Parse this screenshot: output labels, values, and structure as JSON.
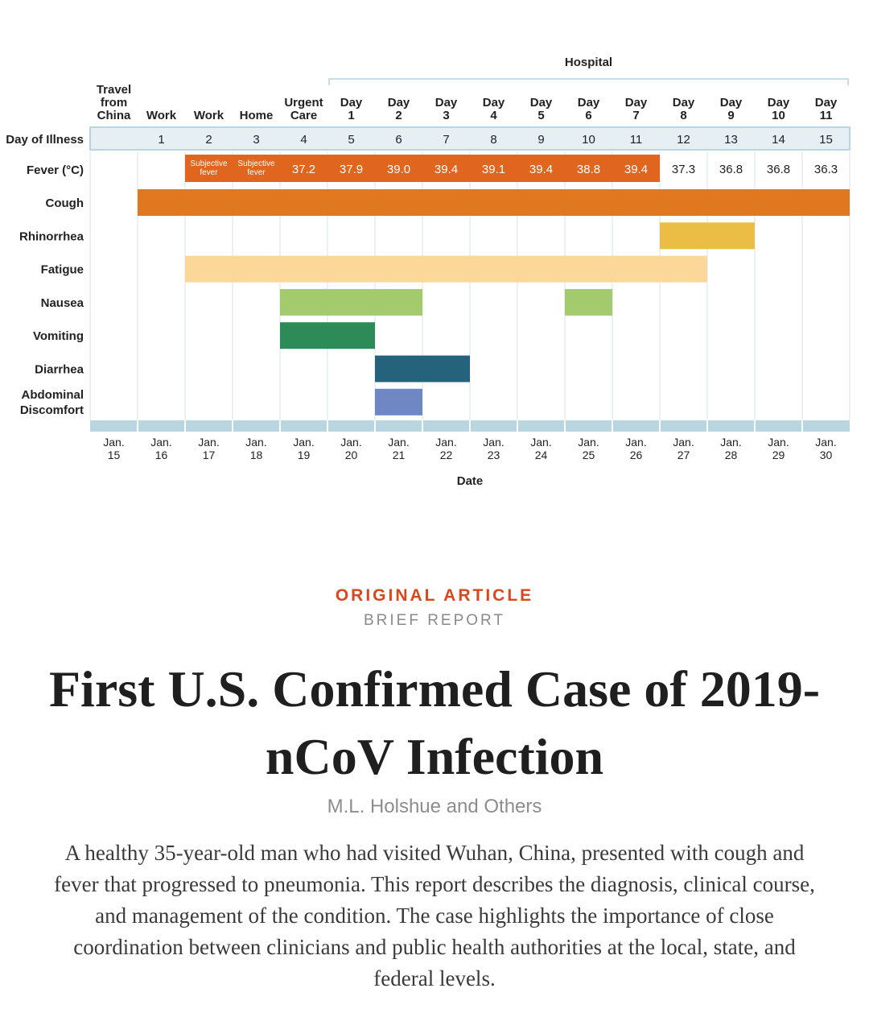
{
  "chart_data": {
    "type": "timeline",
    "hospital_label": "Hospital",
    "location_labels": [
      [
        "Travel",
        "from",
        "China"
      ],
      [
        "Work"
      ],
      [
        "Work"
      ],
      [
        "Home"
      ],
      [
        "Urgent",
        "Care"
      ],
      [
        "Day",
        "1"
      ],
      [
        "Day",
        "2"
      ],
      [
        "Day",
        "3"
      ],
      [
        "Day",
        "4"
      ],
      [
        "Day",
        "5"
      ],
      [
        "Day",
        "6"
      ],
      [
        "Day",
        "7"
      ],
      [
        "Day",
        "8"
      ],
      [
        "Day",
        "9"
      ],
      [
        "Day",
        "10"
      ],
      [
        "Day",
        "11"
      ]
    ],
    "day_of_illness_label": "Day of Illness",
    "day_of_illness": [
      "",
      "1",
      "2",
      "3",
      "4",
      "5",
      "6",
      "7",
      "8",
      "9",
      "10",
      "11",
      "12",
      "13",
      "14",
      "15"
    ],
    "fever_label": "Fever (°C)",
    "fever_values": [
      null,
      null,
      [
        "Subjective",
        "fever"
      ],
      [
        "Subjective",
        "fever"
      ],
      "37.2",
      "37.9",
      "39.0",
      "39.4",
      "39.1",
      "39.4",
      "38.8",
      "39.4",
      "37.3",
      "36.8",
      "36.8",
      "36.3"
    ],
    "fever_bar": {
      "start": 2,
      "end": 11,
      "color": "#e0661f"
    },
    "symptoms": [
      {
        "name": [
          "Cough"
        ],
        "color": "#e0781f",
        "ranges": [
          [
            1,
            15
          ]
        ]
      },
      {
        "name": [
          "Rhinorrhea"
        ],
        "color": "#ebbd44",
        "ranges": [
          [
            12,
            13
          ]
        ]
      },
      {
        "name": [
          "Fatigue"
        ],
        "color": "#fbd89a",
        "ranges": [
          [
            2,
            12
          ]
        ]
      },
      {
        "name": [
          "Nausea"
        ],
        "color": "#a3cb6e",
        "ranges": [
          [
            4,
            6
          ],
          [
            10,
            10
          ]
        ]
      },
      {
        "name": [
          "Vomiting"
        ],
        "color": "#2d8b57",
        "ranges": [
          [
            4,
            5
          ]
        ]
      },
      {
        "name": [
          "Diarrhea"
        ],
        "color": "#24637b",
        "ranges": [
          [
            6,
            7
          ]
        ]
      },
      {
        "name": [
          "Abdominal",
          "Discomfort"
        ],
        "color": "#6f87c2",
        "ranges": [
          [
            6,
            6
          ]
        ]
      }
    ],
    "dates": [
      [
        "Jan.",
        "15"
      ],
      [
        "Jan.",
        "16"
      ],
      [
        "Jan.",
        "17"
      ],
      [
        "Jan.",
        "18"
      ],
      [
        "Jan.",
        "19"
      ],
      [
        "Jan.",
        "20"
      ],
      [
        "Jan.",
        "21"
      ],
      [
        "Jan.",
        "22"
      ],
      [
        "Jan.",
        "23"
      ],
      [
        "Jan.",
        "24"
      ],
      [
        "Jan.",
        "25"
      ],
      [
        "Jan.",
        "26"
      ],
      [
        "Jan.",
        "27"
      ],
      [
        "Jan.",
        "28"
      ],
      [
        "Jan.",
        "29"
      ],
      [
        "Jan.",
        "30"
      ]
    ],
    "xlabel": "Date",
    "band_color": "#b9d5e0",
    "grid_color": "#c8dde6"
  },
  "article": {
    "kicker": "ORIGINAL ARTICLE",
    "subkicker": "BRIEF REPORT",
    "title": "First U.S. Confirmed Case of 2019-nCoV Infection",
    "authors": "M.L. Holshue and Others",
    "abstract": "A healthy 35-year-old man who had visited Wuhan, China, presented with cough and fever that progressed to pneumonia. This report describes the diagnosis, clinical course, and management of the condition. The case highlights the importance of close coordination between clinicians and public health authorities at the local, state, and federal levels."
  }
}
